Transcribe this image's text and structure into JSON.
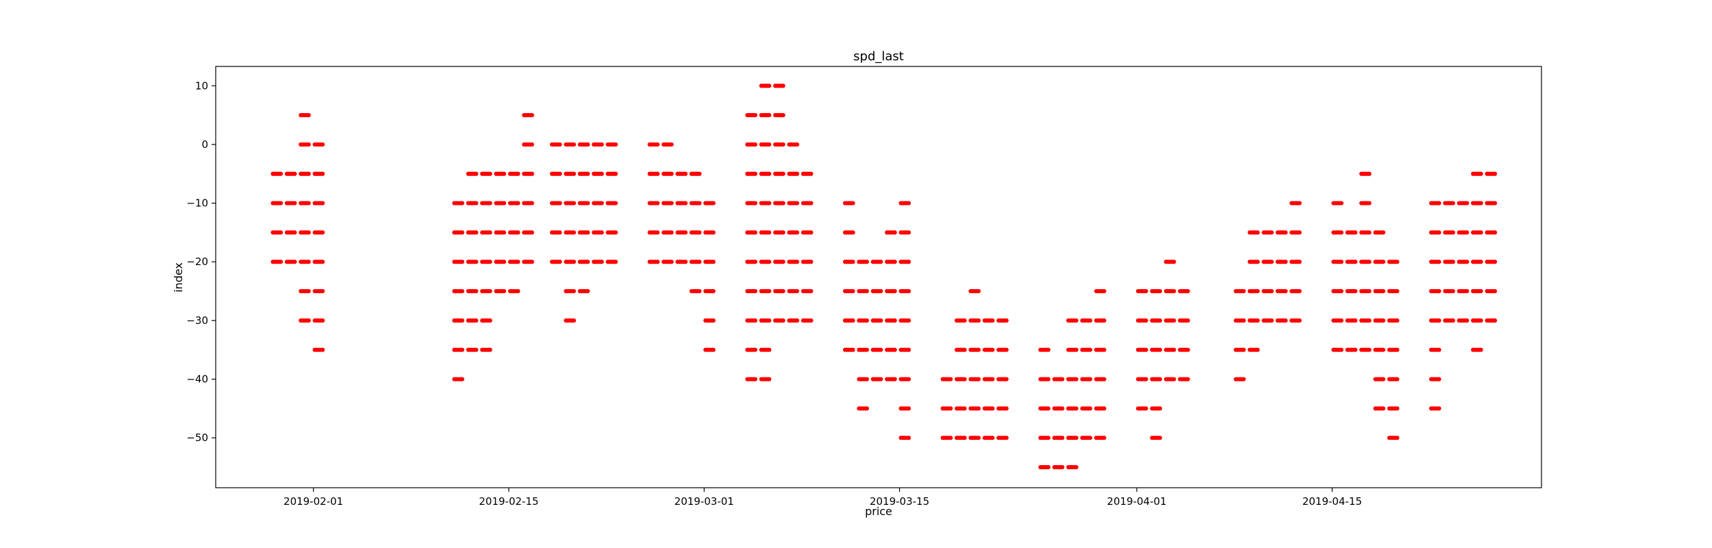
{
  "chart_data": {
    "type": "scatter",
    "title": "spd_last",
    "xlabel": "price",
    "ylabel": "index",
    "x_start": "2019-01-25",
    "x_end": "2019-04-30",
    "xticks": [
      "2019-02-01",
      "2019-02-15",
      "2019-03-01",
      "2019-03-15",
      "2019-04-01",
      "2019-04-15"
    ],
    "ylim": [
      -58.5,
      13.3
    ],
    "yticks": [
      10,
      0,
      -10,
      -20,
      -30,
      -40,
      -50
    ],
    "grid": false,
    "legend": false,
    "color": "#ff0000",
    "clusters": [
      {
        "levels": [
          {
            "y": 5,
            "ranges": [
              [
                "2019-01-31",
                "2019-01-31"
              ]
            ]
          },
          {
            "y": 0,
            "ranges": [
              [
                "2019-01-31",
                "2019-02-01"
              ]
            ]
          },
          {
            "y": -5,
            "ranges": [
              [
                "2019-01-29",
                "2019-02-01"
              ]
            ]
          },
          {
            "y": -10,
            "ranges": [
              [
                "2019-01-29",
                "2019-02-01"
              ]
            ]
          },
          {
            "y": -15,
            "ranges": [
              [
                "2019-01-29",
                "2019-02-01"
              ]
            ]
          },
          {
            "y": -20,
            "ranges": [
              [
                "2019-01-29",
                "2019-02-01"
              ]
            ]
          },
          {
            "y": -25,
            "ranges": [
              [
                "2019-01-31",
                "2019-02-01"
              ]
            ]
          },
          {
            "y": -30,
            "ranges": [
              [
                "2019-01-31",
                "2019-02-01"
              ]
            ]
          },
          {
            "y": -35,
            "ranges": [
              [
                "2019-02-01",
                "2019-02-01"
              ]
            ]
          }
        ]
      },
      {
        "levels": [
          {
            "y": 5,
            "ranges": [
              [
                "2019-02-16",
                "2019-02-16"
              ]
            ]
          },
          {
            "y": 0,
            "ranges": [
              [
                "2019-02-16",
                "2019-02-16"
              ]
            ]
          },
          {
            "y": -5,
            "ranges": [
              [
                "2019-02-12",
                "2019-02-16"
              ]
            ]
          },
          {
            "y": -10,
            "ranges": [
              [
                "2019-02-11",
                "2019-02-16"
              ]
            ]
          },
          {
            "y": -15,
            "ranges": [
              [
                "2019-02-11",
                "2019-02-16"
              ]
            ]
          },
          {
            "y": -20,
            "ranges": [
              [
                "2019-02-11",
                "2019-02-16"
              ]
            ]
          },
          {
            "y": -25,
            "ranges": [
              [
                "2019-02-11",
                "2019-02-15"
              ]
            ]
          },
          {
            "y": -30,
            "ranges": [
              [
                "2019-02-11",
                "2019-02-13"
              ]
            ]
          },
          {
            "y": -35,
            "ranges": [
              [
                "2019-02-11",
                "2019-02-13"
              ]
            ]
          },
          {
            "y": -40,
            "ranges": [
              [
                "2019-02-11",
                "2019-02-11"
              ]
            ]
          }
        ]
      },
      {
        "levels": [
          {
            "y": 0,
            "ranges": [
              [
                "2019-02-18",
                "2019-02-22"
              ]
            ]
          },
          {
            "y": -5,
            "ranges": [
              [
                "2019-02-18",
                "2019-02-22"
              ]
            ]
          },
          {
            "y": -10,
            "ranges": [
              [
                "2019-02-18",
                "2019-02-22"
              ]
            ]
          },
          {
            "y": -15,
            "ranges": [
              [
                "2019-02-18",
                "2019-02-22"
              ]
            ]
          },
          {
            "y": -20,
            "ranges": [
              [
                "2019-02-18",
                "2019-02-22"
              ]
            ]
          },
          {
            "y": -25,
            "ranges": [
              [
                "2019-02-19",
                "2019-02-20"
              ]
            ]
          },
          {
            "y": -30,
            "ranges": [
              [
                "2019-02-19",
                "2019-02-19"
              ]
            ]
          }
        ]
      },
      {
        "levels": [
          {
            "y": 0,
            "ranges": [
              [
                "2019-02-25",
                "2019-02-26"
              ]
            ]
          },
          {
            "y": -5,
            "ranges": [
              [
                "2019-02-25",
                "2019-02-28"
              ]
            ]
          },
          {
            "y": -10,
            "ranges": [
              [
                "2019-02-25",
                "2019-03-01"
              ]
            ]
          },
          {
            "y": -15,
            "ranges": [
              [
                "2019-02-25",
                "2019-03-01"
              ]
            ]
          },
          {
            "y": -20,
            "ranges": [
              [
                "2019-02-25",
                "2019-03-01"
              ]
            ]
          },
          {
            "y": -25,
            "ranges": [
              [
                "2019-02-28",
                "2019-03-01"
              ]
            ]
          },
          {
            "y": -30,
            "ranges": [
              [
                "2019-03-01",
                "2019-03-01"
              ]
            ]
          },
          {
            "y": -35,
            "ranges": [
              [
                "2019-03-01",
                "2019-03-01"
              ]
            ]
          }
        ]
      },
      {
        "levels": [
          {
            "y": 10,
            "ranges": [
              [
                "2019-03-05",
                "2019-03-06"
              ]
            ]
          },
          {
            "y": 5,
            "ranges": [
              [
                "2019-03-04",
                "2019-03-06"
              ]
            ]
          },
          {
            "y": 0,
            "ranges": [
              [
                "2019-03-04",
                "2019-03-07"
              ]
            ]
          },
          {
            "y": -5,
            "ranges": [
              [
                "2019-03-04",
                "2019-03-08"
              ]
            ]
          },
          {
            "y": -10,
            "ranges": [
              [
                "2019-03-04",
                "2019-03-08"
              ]
            ]
          },
          {
            "y": -15,
            "ranges": [
              [
                "2019-03-04",
                "2019-03-08"
              ]
            ]
          },
          {
            "y": -20,
            "ranges": [
              [
                "2019-03-04",
                "2019-03-08"
              ]
            ]
          },
          {
            "y": -25,
            "ranges": [
              [
                "2019-03-04",
                "2019-03-08"
              ]
            ]
          },
          {
            "y": -30,
            "ranges": [
              [
                "2019-03-04",
                "2019-03-08"
              ]
            ]
          },
          {
            "y": -35,
            "ranges": [
              [
                "2019-03-04",
                "2019-03-05"
              ]
            ]
          },
          {
            "y": -40,
            "ranges": [
              [
                "2019-03-04",
                "2019-03-05"
              ]
            ]
          }
        ]
      },
      {
        "levels": [
          {
            "y": -10,
            "ranges": [
              [
                "2019-03-11",
                "2019-03-11"
              ],
              [
                "2019-03-15",
                "2019-03-15"
              ]
            ]
          },
          {
            "y": -15,
            "ranges": [
              [
                "2019-03-11",
                "2019-03-11"
              ],
              [
                "2019-03-14",
                "2019-03-15"
              ]
            ]
          },
          {
            "y": -20,
            "ranges": [
              [
                "2019-03-11",
                "2019-03-15"
              ]
            ]
          },
          {
            "y": -25,
            "ranges": [
              [
                "2019-03-11",
                "2019-03-15"
              ]
            ]
          },
          {
            "y": -30,
            "ranges": [
              [
                "2019-03-11",
                "2019-03-15"
              ]
            ]
          },
          {
            "y": -35,
            "ranges": [
              [
                "2019-03-11",
                "2019-03-15"
              ]
            ]
          },
          {
            "y": -40,
            "ranges": [
              [
                "2019-03-12",
                "2019-03-15"
              ]
            ]
          },
          {
            "y": -45,
            "ranges": [
              [
                "2019-03-12",
                "2019-03-12"
              ],
              [
                "2019-03-15",
                "2019-03-15"
              ]
            ]
          },
          {
            "y": -50,
            "ranges": [
              [
                "2019-03-15",
                "2019-03-15"
              ]
            ]
          }
        ]
      },
      {
        "levels": [
          {
            "y": -25,
            "ranges": [
              [
                "2019-03-20",
                "2019-03-20"
              ]
            ]
          },
          {
            "y": -30,
            "ranges": [
              [
                "2019-03-19",
                "2019-03-22"
              ]
            ]
          },
          {
            "y": -35,
            "ranges": [
              [
                "2019-03-19",
                "2019-03-22"
              ]
            ]
          },
          {
            "y": -40,
            "ranges": [
              [
                "2019-03-18",
                "2019-03-22"
              ]
            ]
          },
          {
            "y": -45,
            "ranges": [
              [
                "2019-03-18",
                "2019-03-22"
              ]
            ]
          },
          {
            "y": -50,
            "ranges": [
              [
                "2019-03-18",
                "2019-03-22"
              ]
            ]
          }
        ]
      },
      {
        "levels": [
          {
            "y": -25,
            "ranges": [
              [
                "2019-03-29",
                "2019-03-29"
              ]
            ]
          },
          {
            "y": -30,
            "ranges": [
              [
                "2019-03-27",
                "2019-03-29"
              ]
            ]
          },
          {
            "y": -35,
            "ranges": [
              [
                "2019-03-25",
                "2019-03-25"
              ],
              [
                "2019-03-27",
                "2019-03-29"
              ]
            ]
          },
          {
            "y": -40,
            "ranges": [
              [
                "2019-03-25",
                "2019-03-29"
              ]
            ]
          },
          {
            "y": -45,
            "ranges": [
              [
                "2019-03-25",
                "2019-03-29"
              ]
            ]
          },
          {
            "y": -50,
            "ranges": [
              [
                "2019-03-25",
                "2019-03-29"
              ]
            ]
          },
          {
            "y": -55,
            "ranges": [
              [
                "2019-03-25",
                "2019-03-27"
              ]
            ]
          }
        ]
      },
      {
        "levels": [
          {
            "y": -20,
            "ranges": [
              [
                "2019-04-03",
                "2019-04-03"
              ]
            ]
          },
          {
            "y": -25,
            "ranges": [
              [
                "2019-04-01",
                "2019-04-04"
              ]
            ]
          },
          {
            "y": -30,
            "ranges": [
              [
                "2019-04-01",
                "2019-04-04"
              ]
            ]
          },
          {
            "y": -35,
            "ranges": [
              [
                "2019-04-01",
                "2019-04-04"
              ]
            ]
          },
          {
            "y": -40,
            "ranges": [
              [
                "2019-04-01",
                "2019-04-04"
              ]
            ]
          },
          {
            "y": -45,
            "ranges": [
              [
                "2019-04-01",
                "2019-04-02"
              ]
            ]
          },
          {
            "y": -50,
            "ranges": [
              [
                "2019-04-02",
                "2019-04-02"
              ]
            ]
          }
        ]
      },
      {
        "levels": [
          {
            "y": -10,
            "ranges": [
              [
                "2019-04-12",
                "2019-04-12"
              ]
            ]
          },
          {
            "y": -15,
            "ranges": [
              [
                "2019-04-09",
                "2019-04-12"
              ]
            ]
          },
          {
            "y": -20,
            "ranges": [
              [
                "2019-04-09",
                "2019-04-12"
              ]
            ]
          },
          {
            "y": -25,
            "ranges": [
              [
                "2019-04-08",
                "2019-04-12"
              ]
            ]
          },
          {
            "y": -30,
            "ranges": [
              [
                "2019-04-08",
                "2019-04-12"
              ]
            ]
          },
          {
            "y": -35,
            "ranges": [
              [
                "2019-04-08",
                "2019-04-09"
              ]
            ]
          },
          {
            "y": -40,
            "ranges": [
              [
                "2019-04-08",
                "2019-04-08"
              ]
            ]
          }
        ]
      },
      {
        "levels": [
          {
            "y": -5,
            "ranges": [
              [
                "2019-04-17",
                "2019-04-17"
              ]
            ]
          },
          {
            "y": -10,
            "ranges": [
              [
                "2019-04-15",
                "2019-04-15"
              ],
              [
                "2019-04-17",
                "2019-04-17"
              ]
            ]
          },
          {
            "y": -15,
            "ranges": [
              [
                "2019-04-15",
                "2019-04-18"
              ]
            ]
          },
          {
            "y": -20,
            "ranges": [
              [
                "2019-04-15",
                "2019-04-19"
              ]
            ]
          },
          {
            "y": -25,
            "ranges": [
              [
                "2019-04-15",
                "2019-04-19"
              ]
            ]
          },
          {
            "y": -30,
            "ranges": [
              [
                "2019-04-15",
                "2019-04-19"
              ]
            ]
          },
          {
            "y": -35,
            "ranges": [
              [
                "2019-04-15",
                "2019-04-19"
              ]
            ]
          },
          {
            "y": -40,
            "ranges": [
              [
                "2019-04-18",
                "2019-04-19"
              ]
            ]
          },
          {
            "y": -45,
            "ranges": [
              [
                "2019-04-18",
                "2019-04-19"
              ]
            ]
          },
          {
            "y": -50,
            "ranges": [
              [
                "2019-04-19",
                "2019-04-19"
              ]
            ]
          }
        ]
      },
      {
        "levels": [
          {
            "y": -5,
            "ranges": [
              [
                "2019-04-25",
                "2019-04-26"
              ]
            ]
          },
          {
            "y": -10,
            "ranges": [
              [
                "2019-04-22",
                "2019-04-26"
              ]
            ]
          },
          {
            "y": -15,
            "ranges": [
              [
                "2019-04-22",
                "2019-04-26"
              ]
            ]
          },
          {
            "y": -20,
            "ranges": [
              [
                "2019-04-22",
                "2019-04-26"
              ]
            ]
          },
          {
            "y": -25,
            "ranges": [
              [
                "2019-04-22",
                "2019-04-26"
              ]
            ]
          },
          {
            "y": -30,
            "ranges": [
              [
                "2019-04-22",
                "2019-04-26"
              ]
            ]
          },
          {
            "y": -35,
            "ranges": [
              [
                "2019-04-22",
                "2019-04-22"
              ],
              [
                "2019-04-25",
                "2019-04-25"
              ]
            ]
          },
          {
            "y": -40,
            "ranges": [
              [
                "2019-04-22",
                "2019-04-22"
              ]
            ]
          },
          {
            "y": -45,
            "ranges": [
              [
                "2019-04-22",
                "2019-04-22"
              ]
            ]
          }
        ]
      }
    ]
  }
}
